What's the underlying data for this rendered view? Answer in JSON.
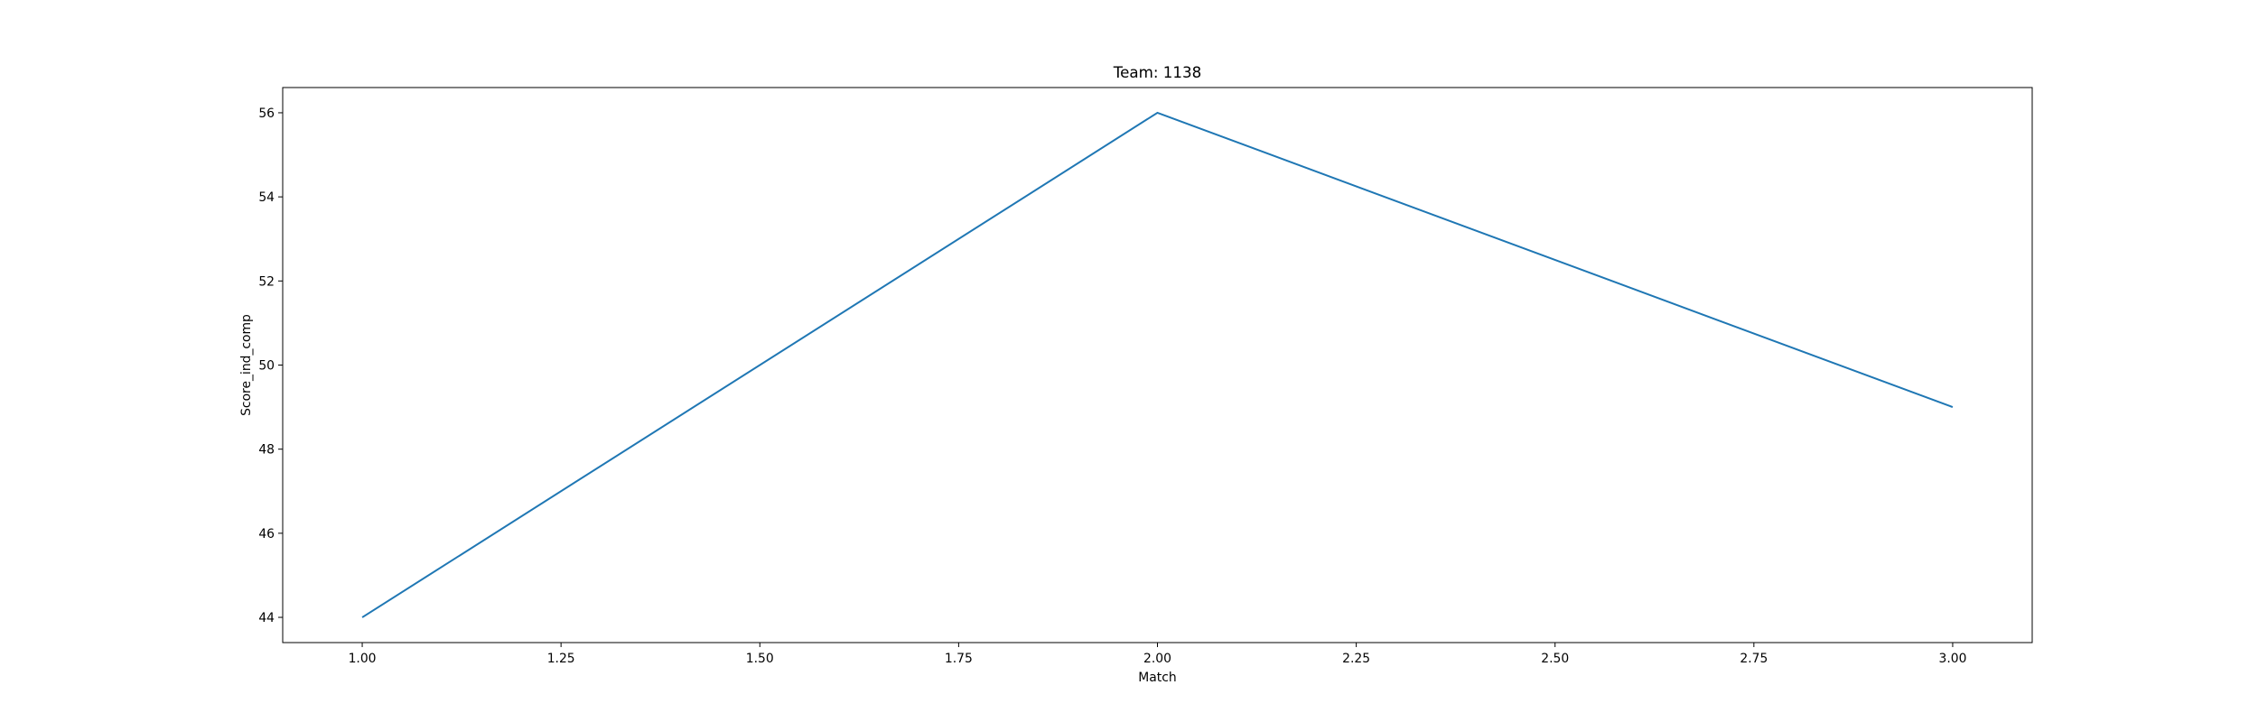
{
  "chart_data": {
    "type": "line",
    "title": "Team: 1138",
    "xlabel": "Match",
    "ylabel": "Score_ind_comp",
    "x": [
      1,
      2,
      3
    ],
    "series": [
      {
        "values": [
          44,
          56,
          49
        ],
        "color": "#1f77b4"
      }
    ],
    "xlim": [
      0.9,
      3.1
    ],
    "ylim": [
      43.4,
      56.6
    ],
    "xticks": [
      1.0,
      1.25,
      1.5,
      1.75,
      2.0,
      2.25,
      2.5,
      2.75,
      3.0
    ],
    "xtick_labels": [
      "1.00",
      "1.25",
      "1.50",
      "1.75",
      "2.00",
      "2.25",
      "2.50",
      "2.75",
      "3.00"
    ],
    "yticks": [
      44,
      46,
      48,
      50,
      52,
      54,
      56
    ],
    "ytick_labels": [
      "44",
      "46",
      "48",
      "50",
      "52",
      "54",
      "56"
    ],
    "grid": false,
    "legend": false
  }
}
